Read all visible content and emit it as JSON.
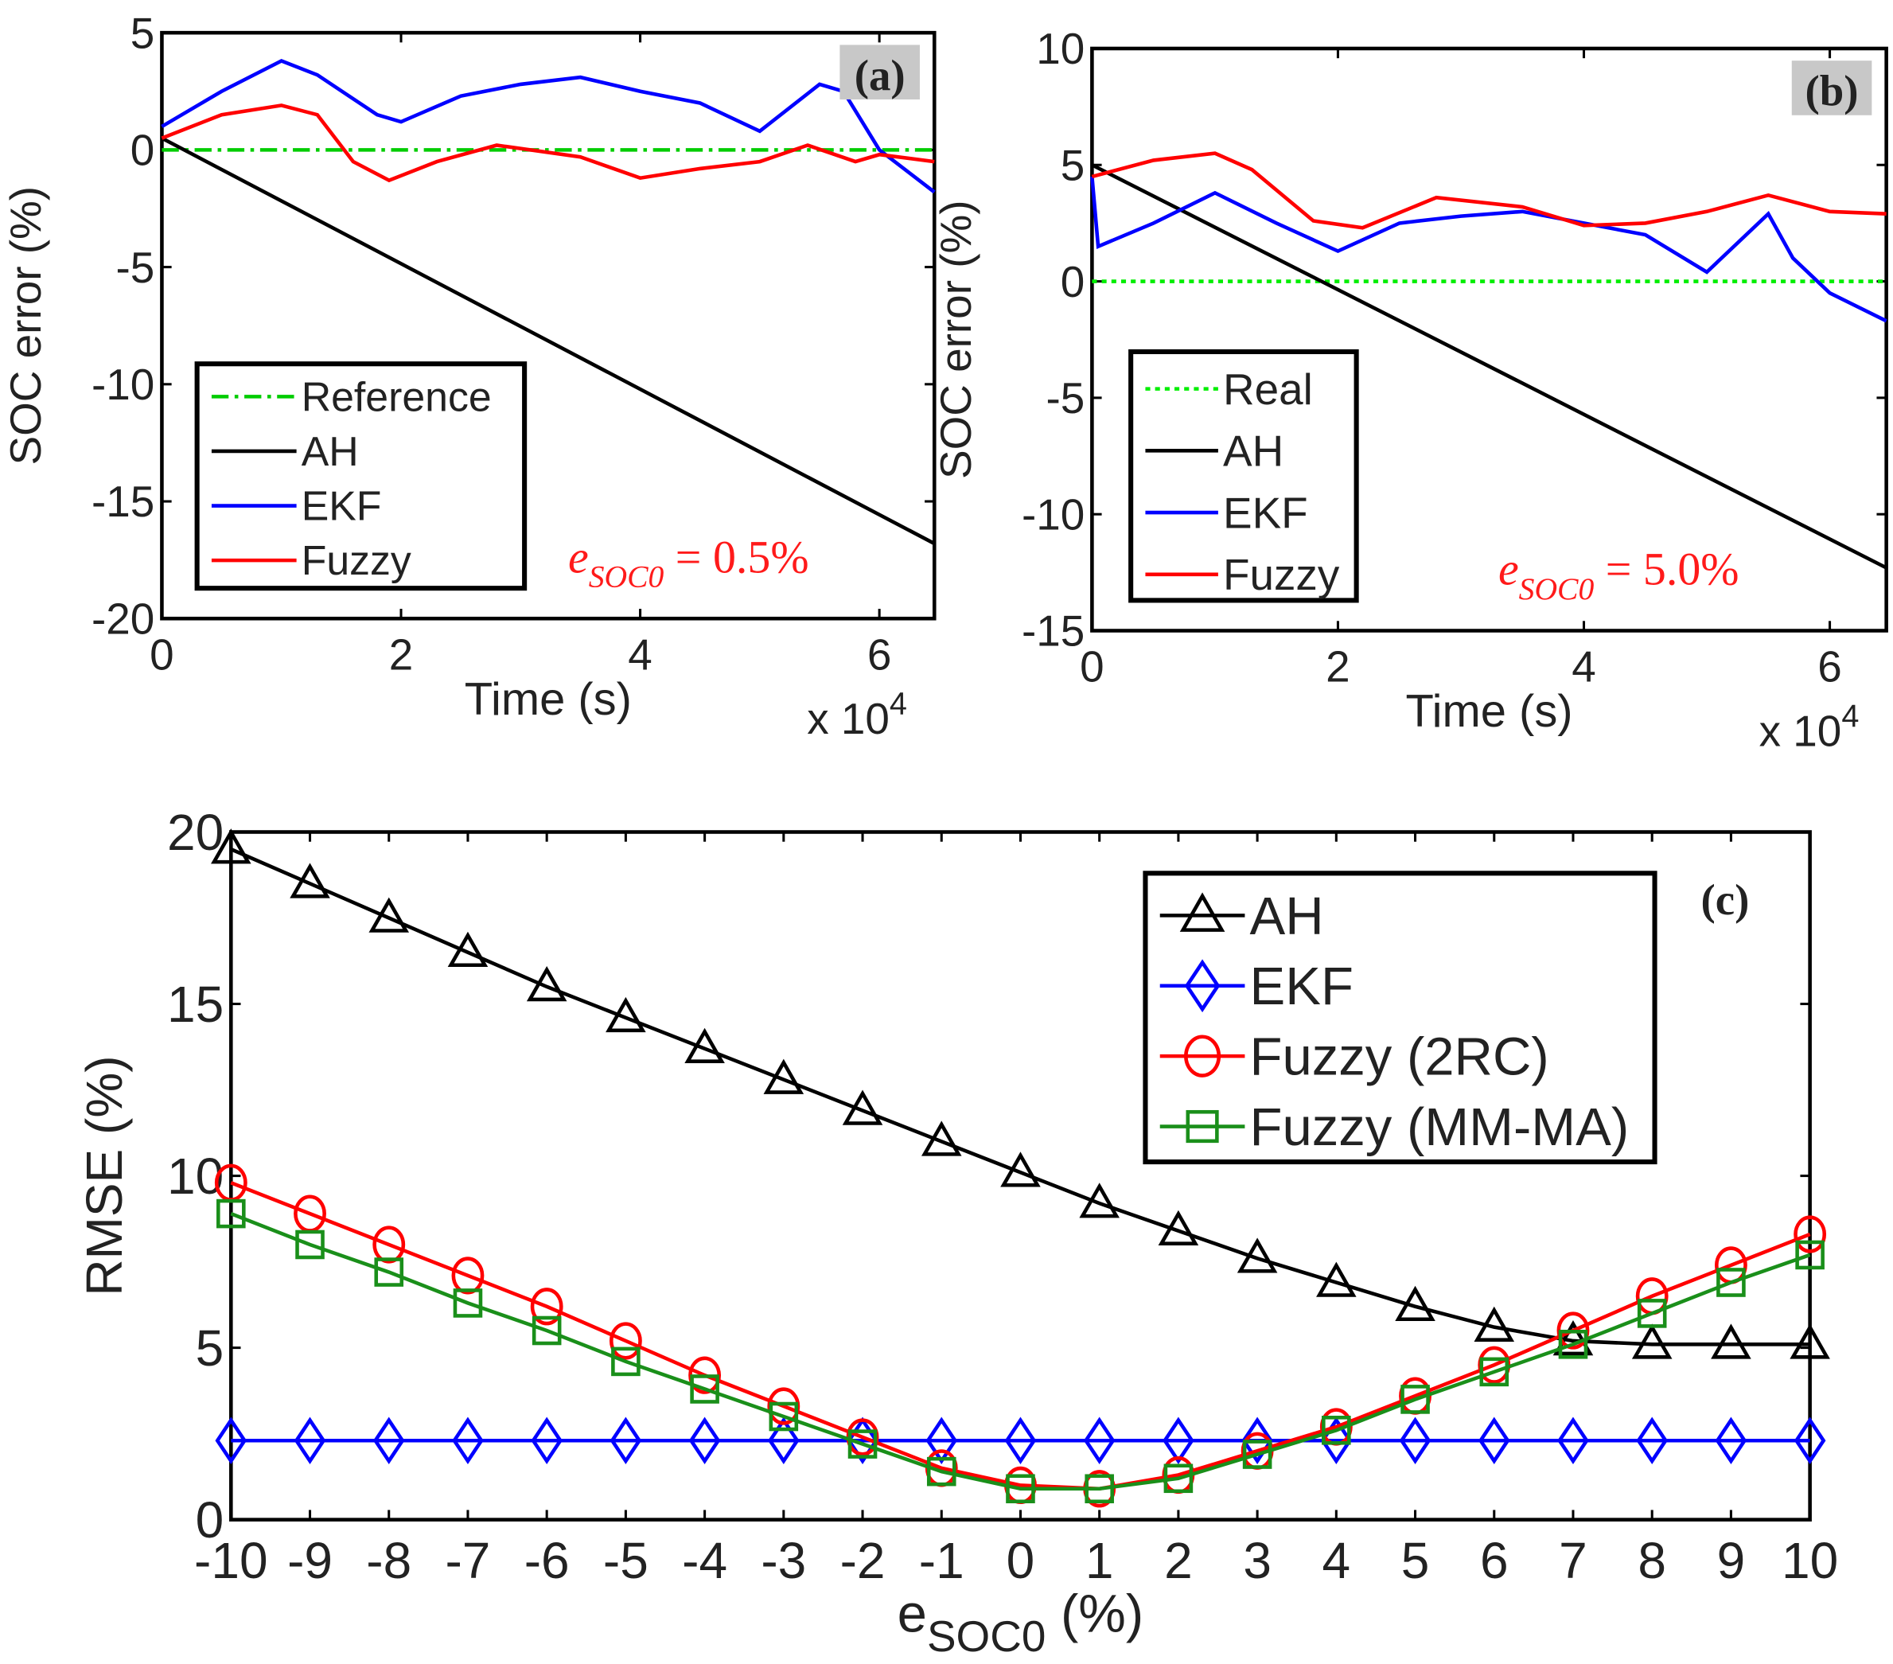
{
  "chart_data": [
    {
      "type": "line",
      "panel_label": "(a)",
      "xlabel": "Time (s)",
      "x_multiplier": "x 10",
      "x_multiplier_exp": "4",
      "ylabel": "SOC error (%)",
      "xlim": [
        0,
        6.46
      ],
      "ylim": [
        -20,
        5
      ],
      "xticks": [
        0,
        2,
        4,
        6
      ],
      "yticks": [
        5,
        0,
        -5,
        -10,
        -15,
        -20
      ],
      "annotation": {
        "var": "e",
        "sub": "SOC0",
        "text": " = 0.5%",
        "color": "#ff1a1a"
      },
      "legend_position": "bottom-left",
      "series": [
        {
          "name": "Reference",
          "color": "#00cc00",
          "dash": "dashdot",
          "x": [
            0,
            6.46
          ],
          "y": [
            0,
            0
          ]
        },
        {
          "name": "AH",
          "color": "#000000",
          "x": [
            0,
            6.46
          ],
          "y": [
            0.5,
            -16.8
          ]
        },
        {
          "name": "EKF",
          "color": "#0000ff",
          "x": [
            0,
            0.5,
            1,
            1.3,
            1.8,
            2,
            2.5,
            3,
            3.5,
            4,
            4.5,
            5,
            5.5,
            5.7,
            6,
            6.46
          ],
          "y": [
            1,
            2.5,
            3.8,
            3.2,
            1.5,
            1.2,
            2.3,
            2.8,
            3.1,
            2.5,
            2,
            0.8,
            2.8,
            2.5,
            0,
            -1.8
          ]
        },
        {
          "name": "Fuzzy",
          "color": "#ff0000",
          "x": [
            0,
            0.5,
            1,
            1.3,
            1.6,
            1.9,
            2.3,
            2.8,
            3.5,
            4,
            4.5,
            5,
            5.4,
            5.8,
            6,
            6.46
          ],
          "y": [
            0.5,
            1.5,
            1.9,
            1.5,
            -0.5,
            -1.3,
            -0.5,
            0.2,
            -0.3,
            -1.2,
            -0.8,
            -0.5,
            0.2,
            -0.5,
            -0.2,
            -0.5
          ]
        }
      ]
    },
    {
      "type": "line",
      "panel_label": "(b)",
      "xlabel": "Time (s)",
      "x_multiplier": "x 10",
      "x_multiplier_exp": "4",
      "ylabel": "SOC error (%)",
      "xlim": [
        0,
        6.46
      ],
      "ylim": [
        -15,
        10
      ],
      "xticks": [
        0,
        2,
        4,
        6
      ],
      "yticks": [
        10,
        5,
        0,
        -5,
        -10,
        -15
      ],
      "annotation": {
        "var": "e",
        "sub": "SOC0",
        "text": " = 5.0%",
        "color": "#ff1a1a"
      },
      "legend_position": "bottom-left",
      "series": [
        {
          "name": "Real",
          "color": "#00ee00",
          "dash": "dotted",
          "x": [
            0,
            6.46
          ],
          "y": [
            0,
            0
          ]
        },
        {
          "name": "AH",
          "color": "#000000",
          "x": [
            0,
            6.46
          ],
          "y": [
            5,
            -12.3
          ]
        },
        {
          "name": "EKF",
          "color": "#0000ff",
          "x": [
            0,
            0.05,
            0.5,
            1,
            1.5,
            2,
            2.5,
            3,
            3.5,
            4,
            4.5,
            5,
            5.5,
            5.7,
            6,
            6.46
          ],
          "y": [
            4.5,
            1.5,
            2.5,
            3.8,
            2.5,
            1.3,
            2.5,
            2.8,
            3,
            2.5,
            2,
            0.4,
            2.9,
            1,
            -0.5,
            -1.7
          ]
        },
        {
          "name": "Fuzzy",
          "color": "#ff0000",
          "x": [
            0,
            0.5,
            1,
            1.3,
            1.8,
            2.2,
            2.8,
            3.5,
            4,
            4.5,
            5,
            5.5,
            6,
            6.46
          ],
          "y": [
            4.5,
            5.2,
            5.5,
            4.8,
            2.6,
            2.3,
            3.6,
            3.2,
            2.4,
            2.5,
            3,
            3.7,
            3,
            2.9
          ]
        }
      ]
    },
    {
      "type": "line",
      "panel_label": "(c)",
      "xlabel": "e",
      "xlabel_sub": "SOC0",
      "xlabel_unit": " (%)",
      "ylabel": "RMSE (%)",
      "xlim": [
        -10,
        10
      ],
      "ylim": [
        0,
        20
      ],
      "yticks": [
        0,
        5,
        10,
        15,
        20
      ],
      "x": [
        -10,
        -9,
        -8,
        -7,
        -6,
        -5,
        -4,
        -3,
        -2,
        -1,
        0,
        1,
        2,
        3,
        4,
        5,
        6,
        7,
        8,
        9,
        10
      ],
      "legend_position": "top-right",
      "series": [
        {
          "name": "AH",
          "color": "#000000",
          "marker": "triangle",
          "values": [
            19.5,
            18.5,
            17.5,
            16.5,
            15.5,
            14.6,
            13.7,
            12.8,
            11.9,
            11.0,
            10.1,
            9.2,
            8.4,
            7.6,
            6.9,
            6.2,
            5.6,
            5.2,
            5.1,
            5.1,
            5.1
          ]
        },
        {
          "name": "EKF",
          "color": "#0000ff",
          "marker": "diamond",
          "values": [
            2.3,
            2.3,
            2.3,
            2.3,
            2.3,
            2.3,
            2.3,
            2.3,
            2.3,
            2.3,
            2.3,
            2.3,
            2.3,
            2.3,
            2.3,
            2.3,
            2.3,
            2.3,
            2.3,
            2.3,
            2.3
          ]
        },
        {
          "name": "Fuzzy (2RC)",
          "color": "#ff0000",
          "marker": "circle",
          "values": [
            9.8,
            8.9,
            8.0,
            7.1,
            6.2,
            5.2,
            4.2,
            3.3,
            2.4,
            1.5,
            1.0,
            0.9,
            1.3,
            2.0,
            2.7,
            3.6,
            4.5,
            5.5,
            6.5,
            7.4,
            8.3
          ]
        },
        {
          "name": "Fuzzy (MM-MA)",
          "color": "#1a8f1a",
          "marker": "square",
          "values": [
            8.9,
            8.0,
            7.2,
            6.3,
            5.5,
            4.6,
            3.8,
            3.0,
            2.2,
            1.4,
            0.9,
            0.9,
            1.2,
            1.9,
            2.6,
            3.5,
            4.3,
            5.1,
            6.0,
            6.9,
            7.7
          ]
        }
      ]
    }
  ]
}
